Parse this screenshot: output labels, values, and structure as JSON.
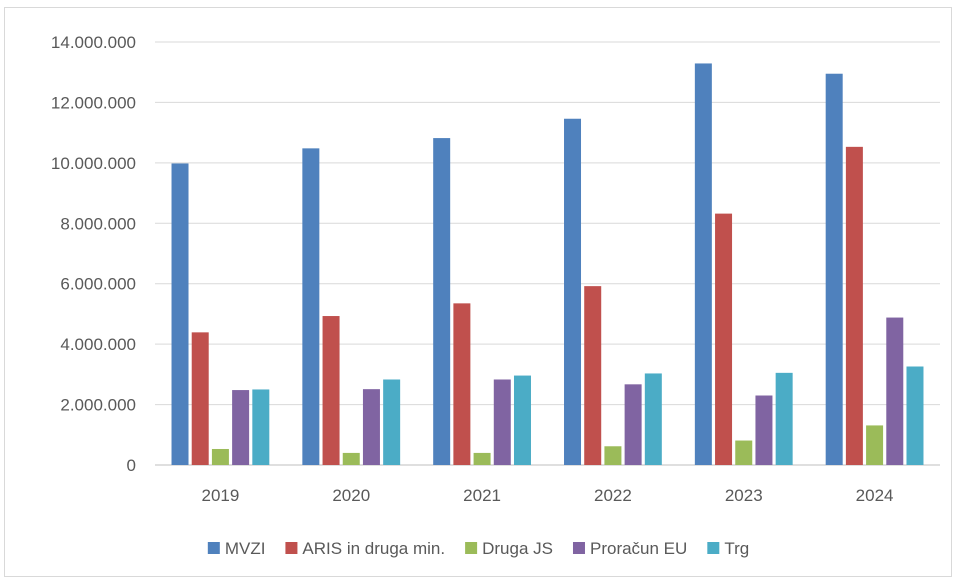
{
  "chart_data": {
    "type": "bar",
    "categories": [
      "2019",
      "2020",
      "2021",
      "2022",
      "2023",
      "2024"
    ],
    "series": [
      {
        "name": "MVZI",
        "color": "#4f81bd",
        "values": [
          9980000,
          10480000,
          10820000,
          11460000,
          13290000,
          12950000
        ]
      },
      {
        "name": "ARIS in druga min.",
        "color": "#c0504d",
        "values": [
          4390000,
          4930000,
          5350000,
          5920000,
          8320000,
          10530000
        ]
      },
      {
        "name": "Druga JS",
        "color": "#9bbb59",
        "values": [
          530000,
          400000,
          400000,
          620000,
          810000,
          1310000
        ]
      },
      {
        "name": "Proračun EU",
        "color": "#8064a2",
        "values": [
          2480000,
          2510000,
          2830000,
          2670000,
          2300000,
          4880000
        ]
      },
      {
        "name": "Trg",
        "color": "#4bacc6",
        "values": [
          2500000,
          2830000,
          2960000,
          3030000,
          3050000,
          3260000
        ]
      }
    ],
    "y_ticks": [
      "0",
      "2.000.000",
      "4.000.000",
      "6.000.000",
      "8.000.000",
      "10.000.000",
      "12.000.000",
      "14.000.000"
    ],
    "ylim": [
      0,
      14000000
    ],
    "grid": true,
    "legend_position": "bottom"
  }
}
